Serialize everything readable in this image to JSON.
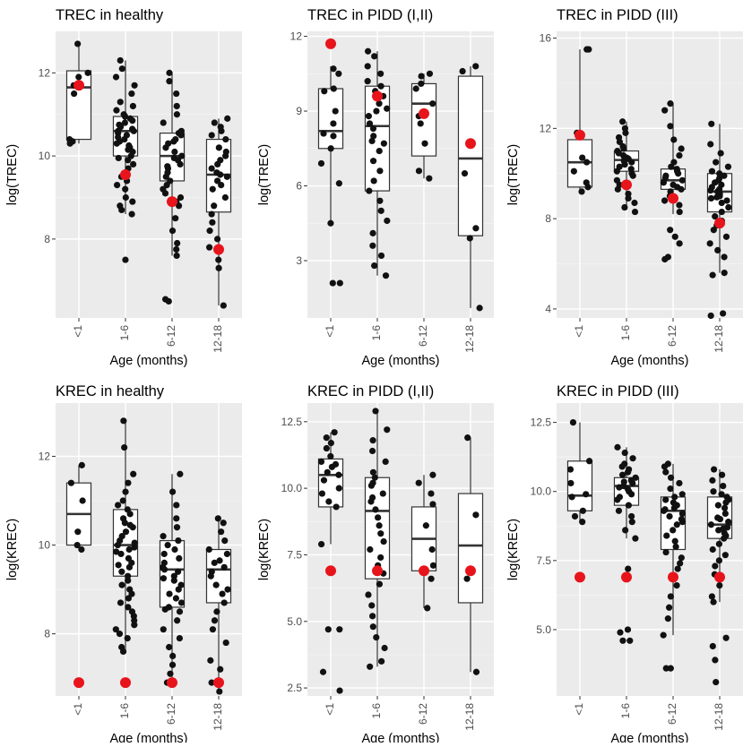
{
  "colors": {
    "panel_bg": "#ebebeb",
    "grid_major": "#ffffff",
    "grid_minor": "#f5f5f5",
    "box_fill": "#ffffff",
    "box_line": "#333333",
    "point": "#111111",
    "highlight": "#e8141b",
    "text": "#000000",
    "tick_text": "#4d4d4d"
  },
  "chart_data": [
    {
      "type": "box",
      "title": "TREC in healthy",
      "xlabel": "Age (months)",
      "ylabel": "log(TREC)",
      "categories": [
        "<1",
        "1-6",
        "6-12",
        "12-18"
      ],
      "ylim": [
        6.1,
        13.0
      ],
      "yticks": [
        8,
        10,
        12
      ],
      "yticklabels": [
        "8",
        "10",
        "12"
      ],
      "boxes": [
        {
          "q1": 10.4,
          "median": 11.65,
          "q3": 12.05,
          "lo": 10.3,
          "hi": 12.7
        },
        {
          "q1": 10.0,
          "median": 10.6,
          "q3": 10.95,
          "lo": 8.6,
          "hi": 12.3
        },
        {
          "q1": 9.4,
          "median": 10.0,
          "q3": 10.55,
          "lo": 7.6,
          "hi": 12.0
        },
        {
          "q1": 8.65,
          "median": 9.55,
          "q3": 10.4,
          "lo": 6.4,
          "hi": 10.9
        }
      ],
      "reference_points": [
        11.7,
        9.55,
        8.9,
        7.75
      ],
      "points": [
        [
          12.7,
          11.9,
          11.7,
          10.4,
          10.35,
          10.3,
          12.0,
          11.5
        ],
        [
          12.3,
          12.1,
          11.9,
          11.7,
          11.5,
          11.3,
          11.2,
          11.0,
          10.95,
          10.9,
          10.85,
          10.8,
          10.7,
          10.65,
          10.6,
          10.6,
          10.55,
          10.5,
          10.45,
          10.4,
          10.35,
          10.3,
          10.25,
          10.2,
          10.1,
          10.0,
          9.95,
          9.9,
          9.8,
          9.7,
          9.6,
          9.5,
          9.4,
          9.3,
          9.2,
          9.0,
          8.9,
          8.8,
          8.7,
          8.6,
          7.5,
          11.1,
          10.75,
          10.15
        ],
        [
          12.0,
          11.8,
          11.5,
          11.2,
          11.0,
          10.8,
          10.6,
          10.55,
          10.5,
          10.4,
          10.3,
          10.2,
          10.1,
          10.0,
          9.95,
          9.9,
          9.8,
          9.7,
          9.6,
          9.5,
          9.4,
          9.3,
          9.2,
          9.1,
          9.0,
          8.9,
          8.8,
          8.5,
          8.2,
          7.9,
          7.75,
          7.6,
          6.55,
          6.5,
          10.35,
          9.75
        ],
        [
          10.9,
          10.8,
          10.7,
          10.6,
          10.5,
          10.4,
          10.2,
          10.0,
          9.9,
          9.8,
          9.7,
          9.6,
          9.5,
          9.4,
          9.3,
          9.2,
          9.0,
          8.8,
          8.6,
          8.4,
          8.2,
          8.0,
          7.8,
          7.5,
          7.3,
          6.4,
          10.1,
          9.55
        ]
      ]
    },
    {
      "type": "box",
      "title": "TREC in PIDD (I,II)",
      "xlabel": "Age (months)",
      "ylabel": "log(TREC)",
      "categories": [
        "<1",
        "1-6",
        "6-12",
        "12-18"
      ],
      "ylim": [
        0.7,
        12.2
      ],
      "yticks": [
        3,
        6,
        9,
        12
      ],
      "yticklabels": [
        "3",
        "6",
        "9",
        "12"
      ],
      "boxes": [
        {
          "q1": 7.5,
          "median": 8.2,
          "q3": 9.9,
          "lo": 4.5,
          "hi": 10.8
        },
        {
          "q1": 5.8,
          "median": 8.4,
          "q3": 10.0,
          "lo": 2.4,
          "hi": 11.4
        },
        {
          "q1": 7.2,
          "median": 9.3,
          "q3": 10.1,
          "lo": 6.3,
          "hi": 10.5
        },
        {
          "q1": 4.0,
          "median": 7.1,
          "q3": 10.4,
          "lo": 1.1,
          "hi": 10.8
        }
      ],
      "reference_points": [
        11.7,
        9.6,
        8.9,
        7.7
      ],
      "points": [
        [
          10.7,
          10.5,
          9.9,
          9.8,
          9.0,
          8.5,
          8.1,
          7.5,
          6.9,
          6.1,
          4.5,
          2.1,
          2.1,
          8.0
        ],
        [
          11.4,
          11.2,
          10.8,
          10.5,
          10.2,
          10.0,
          9.8,
          9.6,
          9.3,
          9.0,
          8.8,
          8.5,
          8.3,
          8.0,
          7.7,
          7.4,
          7.0,
          6.6,
          6.2,
          5.8,
          5.4,
          5.0,
          4.6,
          4.1,
          3.6,
          3.2,
          2.8,
          2.4,
          7.8,
          9.1
        ],
        [
          10.5,
          10.4,
          10.1,
          9.9,
          9.3,
          8.8,
          8.5,
          7.7,
          6.6,
          6.3
        ],
        [
          10.8,
          10.6,
          6.5,
          4.3,
          3.9,
          1.1
        ]
      ]
    },
    {
      "type": "box",
      "title": "TREC in PIDD (III)",
      "xlabel": "Age (months)",
      "ylabel": "log(TREC)",
      "categories": [
        "<1",
        "1-6",
        "6-12",
        "12-18"
      ],
      "ylim": [
        3.6,
        16.3
      ],
      "yticks": [
        4,
        8,
        12,
        16
      ],
      "yticklabels": [
        "4",
        "8",
        "12",
        "16"
      ],
      "boxes": [
        {
          "q1": 9.4,
          "median": 10.5,
          "q3": 11.5,
          "lo": 9.2,
          "hi": 15.5
        },
        {
          "q1": 10.1,
          "median": 10.6,
          "q3": 11.0,
          "lo": 8.4,
          "hi": 12.3
        },
        {
          "q1": 9.3,
          "median": 9.7,
          "q3": 10.2,
          "lo": 8.2,
          "hi": 13.1
        },
        {
          "q1": 8.3,
          "median": 9.2,
          "q3": 10.0,
          "lo": 5.6,
          "hi": 12.2
        }
      ],
      "reference_points": [
        11.7,
        9.5,
        8.9,
        7.8
      ],
      "points": [
        [
          15.5,
          15.5,
          11.8,
          10.7,
          10.5,
          10.1,
          9.6,
          9.4,
          9.2
        ],
        [
          12.3,
          12.0,
          11.8,
          11.6,
          11.4,
          11.2,
          11.1,
          11.0,
          10.9,
          10.8,
          10.7,
          10.6,
          10.5,
          10.4,
          10.3,
          10.2,
          10.1,
          10.0,
          9.9,
          9.7,
          9.5,
          9.3,
          9.1,
          8.9,
          8.7,
          8.5,
          8.3,
          10.55,
          10.65
        ],
        [
          13.1,
          12.8,
          12.1,
          11.5,
          11.1,
          10.8,
          10.5,
          10.3,
          10.2,
          10.1,
          10.0,
          9.9,
          9.8,
          9.7,
          9.6,
          9.5,
          9.4,
          9.3,
          9.2,
          9.0,
          8.8,
          8.6,
          8.3,
          7.5,
          7.2,
          6.9,
          6.3,
          6.2
        ],
        [
          12.2,
          11.3,
          10.9,
          10.5,
          10.3,
          10.1,
          10.0,
          9.9,
          9.8,
          9.7,
          9.6,
          9.5,
          9.4,
          9.3,
          9.2,
          9.1,
          9.0,
          8.9,
          8.8,
          8.7,
          8.5,
          8.3,
          8.1,
          7.9,
          7.7,
          7.5,
          7.2,
          6.9,
          6.6,
          6.3,
          5.6,
          5.5,
          3.8,
          3.7,
          9.25,
          8.95
        ]
      ]
    },
    {
      "type": "box",
      "title": "KREC in healthy",
      "xlabel": "Age (months)",
      "ylabel": "log(KREC)",
      "categories": [
        "<1",
        "1-6",
        "6-12",
        "12-18"
      ],
      "ylim": [
        6.6,
        13.2
      ],
      "yticks": [
        8,
        10,
        12
      ],
      "yticklabels": [
        "8",
        "10",
        "12"
      ],
      "boxes": [
        {
          "q1": 10.0,
          "median": 10.7,
          "q3": 11.4,
          "lo": 9.9,
          "hi": 11.8
        },
        {
          "q1": 9.3,
          "median": 10.0,
          "q3": 10.8,
          "lo": 7.6,
          "hi": 12.8
        },
        {
          "q1": 8.6,
          "median": 9.45,
          "q3": 10.1,
          "lo": 6.9,
          "hi": 11.6
        },
        {
          "q1": 8.7,
          "median": 9.45,
          "q3": 9.9,
          "lo": 6.7,
          "hi": 10.6
        }
      ],
      "reference_points": [
        6.9,
        6.9,
        6.9,
        6.9
      ],
      "points": [
        [
          11.8,
          11.4,
          11.0,
          10.3,
          10.0,
          9.9
        ],
        [
          12.8,
          12.2,
          11.6,
          11.4,
          11.2,
          11.0,
          10.9,
          10.8,
          10.7,
          10.6,
          10.5,
          10.4,
          10.3,
          10.2,
          10.1,
          10.0,
          9.95,
          9.9,
          9.8,
          9.7,
          9.6,
          9.5,
          9.4,
          9.3,
          9.2,
          9.1,
          9.0,
          8.9,
          8.8,
          8.7,
          8.6,
          8.5,
          8.4,
          8.3,
          8.2,
          8.1,
          8.0,
          7.9,
          7.7,
          7.6,
          10.05,
          9.55,
          9.85,
          10.45
        ],
        [
          11.6,
          11.2,
          10.9,
          10.6,
          10.4,
          10.2,
          10.1,
          10.0,
          9.9,
          9.8,
          9.7,
          9.6,
          9.5,
          9.4,
          9.3,
          9.2,
          9.1,
          9.0,
          8.9,
          8.8,
          8.7,
          8.6,
          8.5,
          8.3,
          8.1,
          7.9,
          7.7,
          7.5,
          7.3,
          7.1,
          6.9,
          9.45,
          9.25,
          8.55
        ],
        [
          10.6,
          10.5,
          10.3,
          10.1,
          9.9,
          9.8,
          9.6,
          9.5,
          9.4,
          9.3,
          9.1,
          8.9,
          8.7,
          8.5,
          8.3,
          8.1,
          7.8,
          7.4,
          7.2,
          6.9,
          6.7,
          9.65,
          9.0
        ]
      ]
    },
    {
      "type": "box",
      "title": "KREC in PIDD (I,II)",
      "xlabel": "Age (months)",
      "ylabel": "log(KREC)",
      "categories": [
        "<1",
        "1-6",
        "6-12",
        "12-18"
      ],
      "ylim": [
        2.2,
        13.2
      ],
      "yticks": [
        2.5,
        5.0,
        7.5,
        10.0,
        12.5
      ],
      "yticklabels": [
        "2.5",
        "5.0",
        "7.5",
        "10.0",
        "12.5"
      ],
      "boxes": [
        {
          "q1": 9.3,
          "median": 10.5,
          "q3": 11.1,
          "lo": 7.9,
          "hi": 12.1
        },
        {
          "q1": 6.6,
          "median": 9.15,
          "q3": 10.4,
          "lo": 3.3,
          "hi": 12.9
        },
        {
          "q1": 6.9,
          "median": 8.1,
          "q3": 9.3,
          "lo": 5.5,
          "hi": 10.5
        },
        {
          "q1": 5.7,
          "median": 7.85,
          "q3": 9.8,
          "lo": 3.1,
          "hi": 11.9
        }
      ],
      "reference_points": [
        6.9,
        6.9,
        6.9,
        6.9
      ],
      "points": [
        [
          12.1,
          11.9,
          11.7,
          11.5,
          11.2,
          11.0,
          10.9,
          10.8,
          10.6,
          10.5,
          10.3,
          10.0,
          9.8,
          9.5,
          9.3,
          7.9,
          4.7,
          4.7,
          3.1,
          2.4
        ],
        [
          12.9,
          12.2,
          11.8,
          11.4,
          11.0,
          10.6,
          10.4,
          10.1,
          9.8,
          9.5,
          9.2,
          8.9,
          8.6,
          8.3,
          8.0,
          7.7,
          7.4,
          7.1,
          6.8,
          6.4,
          6.0,
          5.6,
          5.2,
          4.8,
          4.4,
          4.0,
          3.5,
          3.3,
          9.65,
          10.2
        ],
        [
          10.5,
          10.2,
          9.8,
          9.4,
          8.6,
          7.7,
          7.1,
          6.6,
          5.5
        ],
        [
          11.9,
          9.0,
          6.6,
          3.1
        ]
      ]
    },
    {
      "type": "box",
      "title": "KREC in PIDD (III)",
      "xlabel": "Age (months)",
      "ylabel": "log(KREC)",
      "categories": [
        "<1",
        "1-6",
        "6-12",
        "12-18"
      ],
      "ylim": [
        2.6,
        13.2
      ],
      "yticks": [
        5.0,
        7.5,
        10.0,
        12.5
      ],
      "yticklabels": [
        "5.0",
        "7.5",
        "10.0",
        "12.5"
      ],
      "boxes": [
        {
          "q1": 9.3,
          "median": 9.85,
          "q3": 11.1,
          "lo": 8.9,
          "hi": 12.5
        },
        {
          "q1": 9.5,
          "median": 10.2,
          "q3": 10.5,
          "lo": 8.3,
          "hi": 11.6
        },
        {
          "q1": 7.9,
          "median": 9.3,
          "q3": 9.8,
          "lo": 4.8,
          "hi": 11.0
        },
        {
          "q1": 8.3,
          "median": 8.8,
          "q3": 9.8,
          "lo": 6.0,
          "hi": 10.8
        }
      ],
      "reference_points": [
        6.9,
        6.9,
        6.9,
        6.9
      ],
      "points": [
        [
          12.5,
          11.1,
          10.8,
          10.3,
          9.9,
          9.8,
          9.3,
          9.1,
          8.9
        ],
        [
          11.6,
          11.4,
          11.2,
          11.0,
          10.9,
          10.8,
          10.7,
          10.6,
          10.5,
          10.4,
          10.3,
          10.2,
          10.1,
          10.0,
          9.9,
          9.8,
          9.7,
          9.5,
          9.3,
          9.1,
          8.9,
          8.6,
          8.3,
          7.2,
          5.0,
          4.9,
          4.6,
          4.6,
          10.35,
          10.15
        ],
        [
          11.0,
          10.9,
          10.7,
          10.5,
          10.3,
          10.1,
          9.9,
          9.8,
          9.7,
          9.6,
          9.5,
          9.4,
          9.3,
          9.2,
          9.1,
          9.0,
          8.8,
          8.6,
          8.4,
          8.2,
          8.0,
          7.8,
          7.6,
          7.4,
          7.2,
          6.9,
          6.6,
          6.2,
          5.8,
          5.4,
          4.8,
          3.6,
          3.6,
          9.35,
          8.9
        ],
        [
          10.8,
          10.6,
          10.4,
          10.2,
          10.0,
          9.9,
          9.8,
          9.7,
          9.6,
          9.5,
          9.4,
          9.2,
          9.0,
          8.9,
          8.8,
          8.7,
          8.6,
          8.5,
          8.4,
          8.3,
          8.1,
          7.9,
          7.7,
          7.5,
          7.3,
          7.0,
          6.6,
          6.2,
          6.0,
          4.7,
          4.4,
          3.9,
          3.1,
          9.05,
          8.65
        ]
      ]
    }
  ]
}
